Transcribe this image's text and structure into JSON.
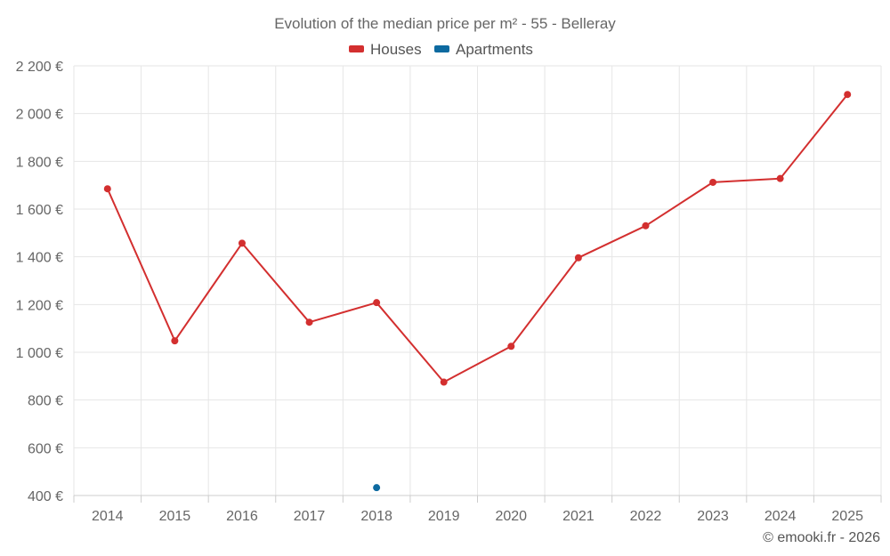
{
  "chart_data": {
    "type": "line",
    "title": "Evolution of the median price per m² - 55 - Belleray",
    "categories": [
      "2014",
      "2015",
      "2016",
      "2017",
      "2018",
      "2019",
      "2020",
      "2021",
      "2022",
      "2023",
      "2024",
      "2025"
    ],
    "series": [
      {
        "name": "Houses",
        "color": "#d32f2f",
        "values": [
          1685,
          1048,
          1457,
          1126,
          1208,
          875,
          1025,
          1396,
          1530,
          1712,
          1728,
          2080
        ]
      },
      {
        "name": "Apartments",
        "color": "#0d6aa0",
        "values": [
          null,
          null,
          null,
          null,
          433,
          null,
          null,
          null,
          null,
          null,
          null,
          null
        ]
      }
    ],
    "yticks": [
      "400 €",
      "600 €",
      "800 €",
      "1 000 €",
      "1 200 €",
      "1 400 €",
      "1 600 €",
      "1 800 €",
      "2 000 €",
      "2 200 €"
    ],
    "ylim": [
      400,
      2200
    ],
    "grid": true,
    "legend": "top-center"
  },
  "credit": "© emooki.fr - 2026"
}
